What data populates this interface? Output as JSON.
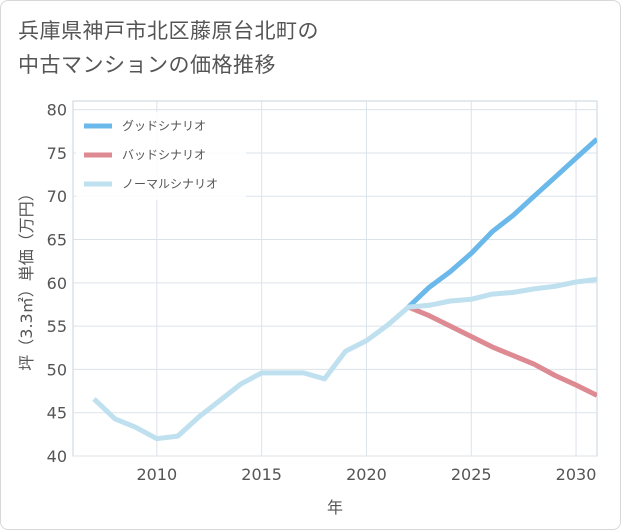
{
  "title": {
    "line1": "兵庫県神戸市北区藤原台北町の",
    "line2": "中古マンションの価格推移"
  },
  "chart_data": {
    "type": "line",
    "xlabel": "年",
    "ylabel": "坪（3.3㎡）単価（万円）",
    "xlim": [
      2006,
      2031
    ],
    "ylim": [
      40,
      81
    ],
    "xticks": [
      2010,
      2015,
      2020,
      2025,
      2030
    ],
    "yticks": [
      40,
      45,
      50,
      55,
      60,
      65,
      70,
      75,
      80
    ],
    "grid": true,
    "legend_position": "top-left",
    "series": [
      {
        "name": "グッドシナリオ",
        "color": "#6bb8ea",
        "points": [
          [
            2022,
            57.2
          ],
          [
            2023,
            59.5
          ],
          [
            2024,
            61.3
          ],
          [
            2025,
            63.4
          ],
          [
            2026,
            65.9
          ],
          [
            2027,
            67.8
          ],
          [
            2028,
            70.0
          ],
          [
            2029,
            72.2
          ],
          [
            2030,
            74.4
          ],
          [
            2031,
            76.6
          ]
        ]
      },
      {
        "name": "バッドシナリオ",
        "color": "#de8a93",
        "points": [
          [
            2022,
            57.2
          ],
          [
            2023,
            56.2
          ],
          [
            2024,
            55.0
          ],
          [
            2025,
            53.8
          ],
          [
            2026,
            52.6
          ],
          [
            2027,
            51.6
          ],
          [
            2028,
            50.6
          ],
          [
            2029,
            49.3
          ],
          [
            2030,
            48.2
          ],
          [
            2031,
            47.0
          ]
        ]
      },
      {
        "name": "ノーマルシナリオ",
        "color": "#bfe0ee",
        "points": [
          [
            2007,
            46.6
          ],
          [
            2008,
            44.3
          ],
          [
            2009,
            43.3
          ],
          [
            2010,
            42.0
          ],
          [
            2011,
            42.3
          ],
          [
            2012,
            44.5
          ],
          [
            2013,
            46.4
          ],
          [
            2014,
            48.3
          ],
          [
            2015,
            49.6
          ],
          [
            2016,
            49.6
          ],
          [
            2017,
            49.6
          ],
          [
            2018,
            48.9
          ],
          [
            2019,
            52.1
          ],
          [
            2020,
            53.3
          ],
          [
            2021,
            55.1
          ],
          [
            2022,
            57.2
          ],
          [
            2023,
            57.4
          ],
          [
            2024,
            57.9
          ],
          [
            2025,
            58.1
          ],
          [
            2026,
            58.7
          ],
          [
            2027,
            58.9
          ],
          [
            2028,
            59.3
          ],
          [
            2029,
            59.6
          ],
          [
            2030,
            60.1
          ],
          [
            2031,
            60.4
          ]
        ]
      }
    ]
  }
}
